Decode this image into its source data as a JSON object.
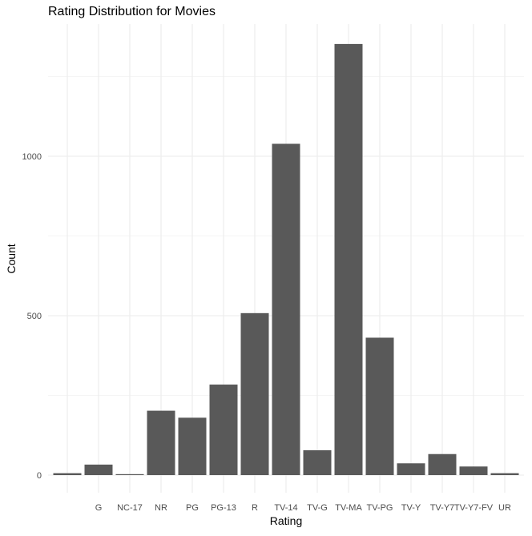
{
  "chart_data": {
    "type": "bar",
    "title": "Rating Distribution for Movies",
    "xlabel": "Rating",
    "ylabel": "Count",
    "categories": [
      "",
      "G",
      "NC-17",
      "NR",
      "PG",
      "PG-13",
      "R",
      "TV-14",
      "TV-G",
      "TV-MA",
      "TV-PG",
      "TV-Y",
      "TV-Y7",
      "TV-Y7-FV",
      "UR"
    ],
    "values": [
      6,
      33,
      3,
      202,
      180,
      284,
      508,
      1039,
      78,
      1352,
      431,
      37,
      66,
      27,
      6
    ],
    "y_ticks": [
      0,
      500,
      1000
    ],
    "ylim": [
      0,
      1419
    ],
    "grid": true,
    "bar_color": "#595959",
    "grid_color": "#ebebeb"
  }
}
